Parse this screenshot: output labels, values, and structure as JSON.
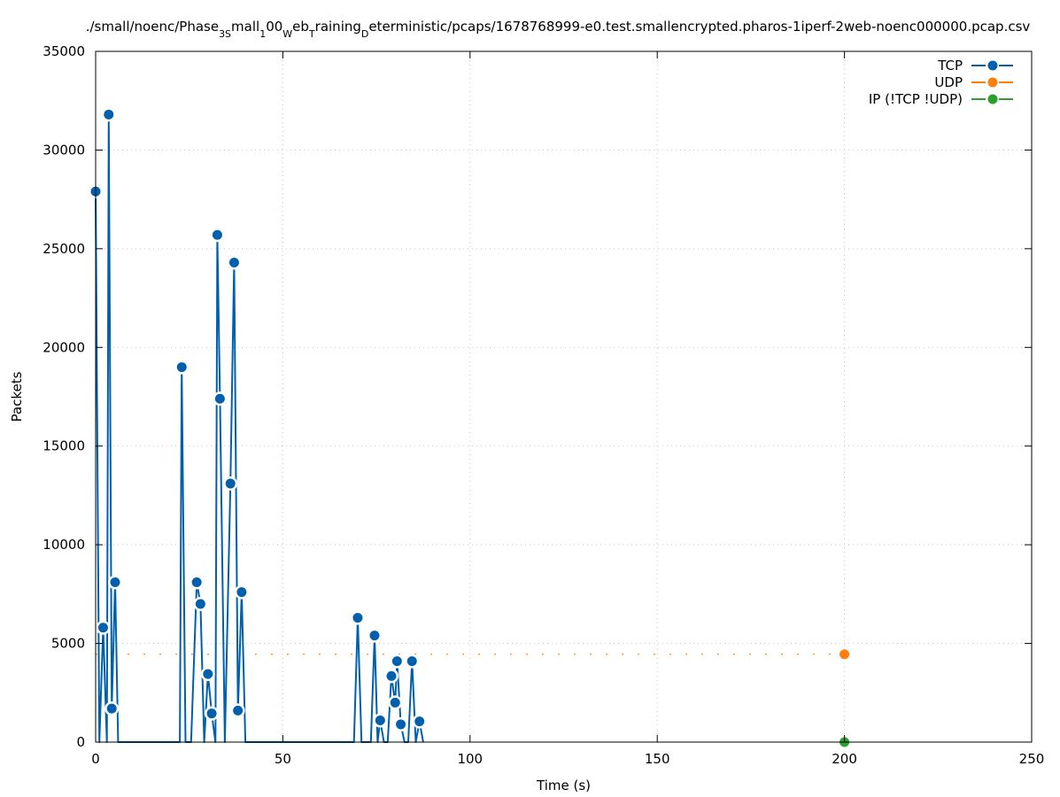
{
  "chart_data": {
    "type": "line",
    "title": "./small/noenc/Phase_3Small_100_Web_Training_Deterministic/pcaps/1678768999-e0.test.smallencrypted.pharos-1iperf-2web-noenc000000.pcap.csv",
    "title_parts": [
      {
        "t": "./small/noenc/Phase",
        "s": "n"
      },
      {
        "t": "3S",
        "s": "sub"
      },
      {
        "t": "mall",
        "s": "n"
      },
      {
        "t": "1",
        "s": "sub"
      },
      {
        "t": "00",
        "s": "n"
      },
      {
        "t": "W",
        "s": "sub"
      },
      {
        "t": "eb",
        "s": "n"
      },
      {
        "t": "T",
        "s": "sub"
      },
      {
        "t": "raining",
        "s": "n"
      },
      {
        "t": "D",
        "s": "sub"
      },
      {
        "t": "eterministic/pcaps/1678768999-e0.test.smallencrypted.pharos-1iperf-2web-noenc000000.pcap.csv",
        "s": "n"
      }
    ],
    "xlabel": "Time (s)",
    "ylabel": "Packets",
    "xlim": [
      0,
      250
    ],
    "ylim": [
      0,
      35000
    ],
    "xticks": [
      0,
      50,
      100,
      150,
      200,
      250
    ],
    "yticks": [
      0,
      5000,
      10000,
      15000,
      20000,
      25000,
      30000,
      35000
    ],
    "grid": true,
    "legend_position": "top-right",
    "series": [
      {
        "name": "TCP",
        "color": "#0060ad",
        "points": [
          [
            0,
            27900
          ],
          [
            1,
            0
          ],
          [
            2,
            5800
          ],
          [
            3,
            0
          ],
          [
            3.5,
            31800
          ],
          [
            4.3,
            1700
          ],
          [
            5.2,
            8100
          ],
          [
            6,
            0
          ],
          [
            22.5,
            0
          ],
          [
            23,
            19000
          ],
          [
            24,
            0
          ],
          [
            25.5,
            0
          ],
          [
            27,
            8100
          ],
          [
            28,
            7000
          ],
          [
            29,
            0
          ],
          [
            30,
            3450
          ],
          [
            31,
            1450
          ],
          [
            32,
            0
          ],
          [
            32.5,
            25700
          ],
          [
            33.2,
            17400
          ],
          [
            34.5,
            0
          ],
          [
            36,
            13100
          ],
          [
            37,
            24300
          ],
          [
            38,
            1600
          ],
          [
            39,
            7600
          ],
          [
            40,
            0
          ],
          [
            69,
            0
          ],
          [
            70,
            6300
          ],
          [
            71,
            0
          ],
          [
            73.5,
            0
          ],
          [
            74.5,
            5400
          ],
          [
            75.3,
            0
          ],
          [
            76,
            1100
          ],
          [
            77,
            0
          ],
          [
            78,
            0
          ],
          [
            79,
            3350
          ],
          [
            80,
            2000
          ],
          [
            80.5,
            4100
          ],
          [
            81.5,
            900
          ],
          [
            82.5,
            0
          ],
          [
            83.5,
            0
          ],
          [
            84.5,
            4100
          ],
          [
            85.5,
            0
          ],
          [
            86.5,
            1050
          ],
          [
            87.5,
            0
          ]
        ]
      },
      {
        "name": "UDP",
        "color": "#ff7f0e",
        "points": [
          [
            0,
            4450
          ],
          [
            200,
            4450
          ]
        ]
      },
      {
        "name": "IP (!TCP  !UDP)",
        "color": "#2ca02c",
        "points": [
          [
            200,
            0
          ]
        ]
      }
    ]
  }
}
